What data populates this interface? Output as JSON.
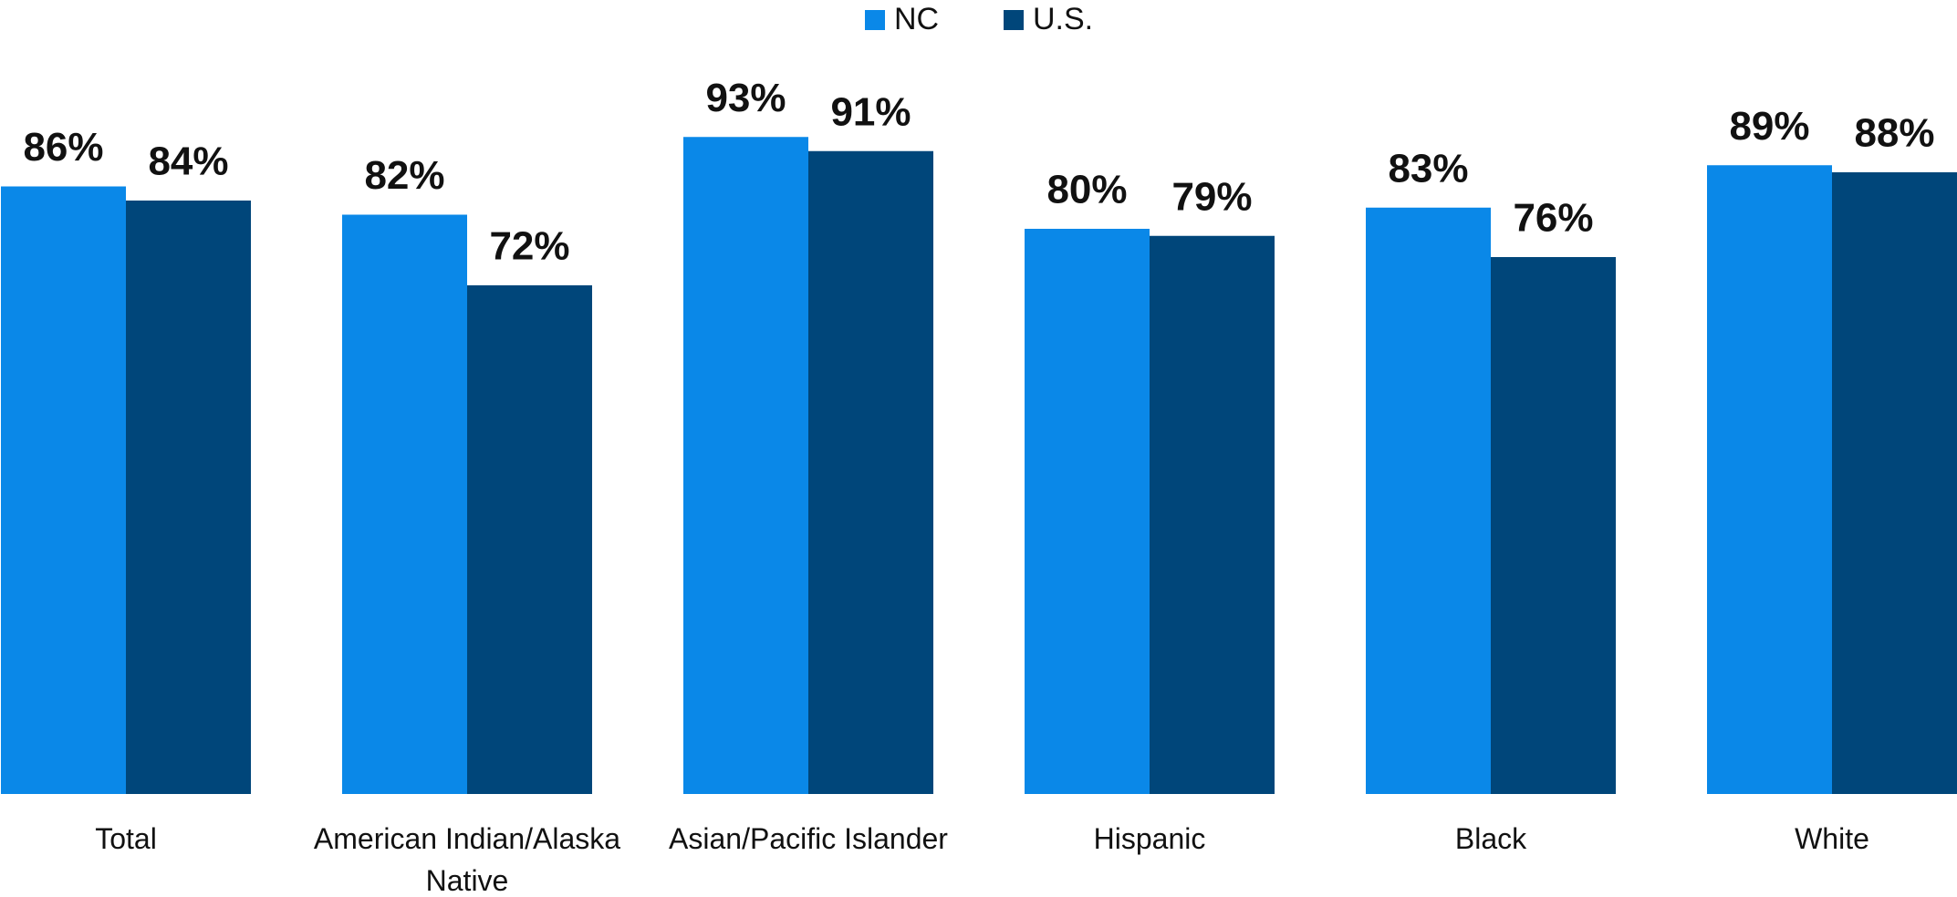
{
  "chart_data": {
    "type": "bar",
    "categories": [
      "Total",
      "American Indian/Alaska Native",
      "Asian/Pacific Islander",
      "Hispanic",
      "Black",
      "White"
    ],
    "series": [
      {
        "name": "NC",
        "color": "#0a88e8",
        "values": [
          86,
          82,
          93,
          80,
          83,
          89
        ],
        "value_labels": [
          "86%",
          "82%",
          "93%",
          "80%",
          "83%",
          "89%"
        ]
      },
      {
        "name": "U.S.",
        "color": "#00467a",
        "values": [
          84,
          72,
          91,
          79,
          76,
          88
        ],
        "value_labels": [
          "84%",
          "72%",
          "91%",
          "79%",
          "76%",
          "88%"
        ]
      }
    ],
    "ylim": [
      0,
      100
    ],
    "grid": false,
    "legend": "top"
  }
}
